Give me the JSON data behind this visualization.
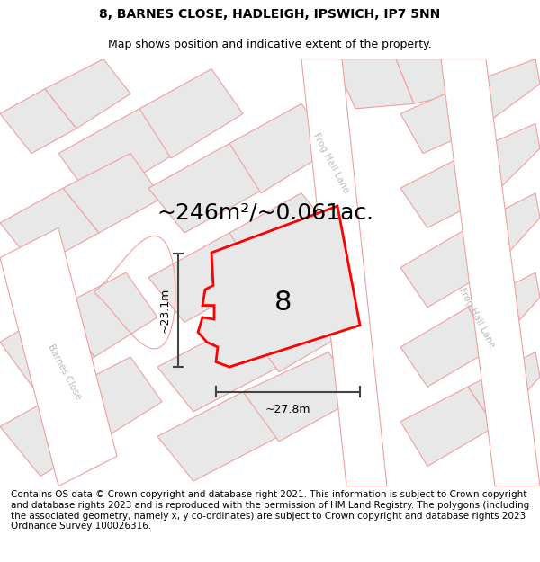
{
  "title_line1": "8, BARNES CLOSE, HADLEIGH, IPSWICH, IP7 5NN",
  "title_line2": "Map shows position and indicative extent of the property.",
  "area_label": "~246m²/~0.061ac.",
  "plot_number": "8",
  "dim_width": "~27.8m",
  "dim_height": "~23.1m",
  "road_label1": "Frog Hall Lane",
  "road_label2": "Frog Hall Lane",
  "street_label": "Barnes Close",
  "footer_text": "Contains OS data © Crown copyright and database right 2021. This information is subject to Crown copyright and database rights 2023 and is reproduced with the permission of HM Land Registry. The polygons (including the associated geometry, namely x, y co-ordinates) are subject to Crown copyright and database rights 2023 Ordnance Survey 100026316.",
  "bg_color": "#ffffff",
  "plot_fill": "#e8e8e8",
  "plot_edge_color": "#ff0000",
  "surround_fill": "#e8e8e8",
  "surround_edge": "#f0a0a0",
  "road_fill": "#ffffff",
  "dim_line_color": "#444444",
  "road_label_color": "#aaaaaa",
  "title_fontsize": 10,
  "subtitle_fontsize": 9,
  "area_fontsize": 18,
  "number_fontsize": 22,
  "footer_fontsize": 7.5,
  "road_text_color": "#bbbbbb"
}
